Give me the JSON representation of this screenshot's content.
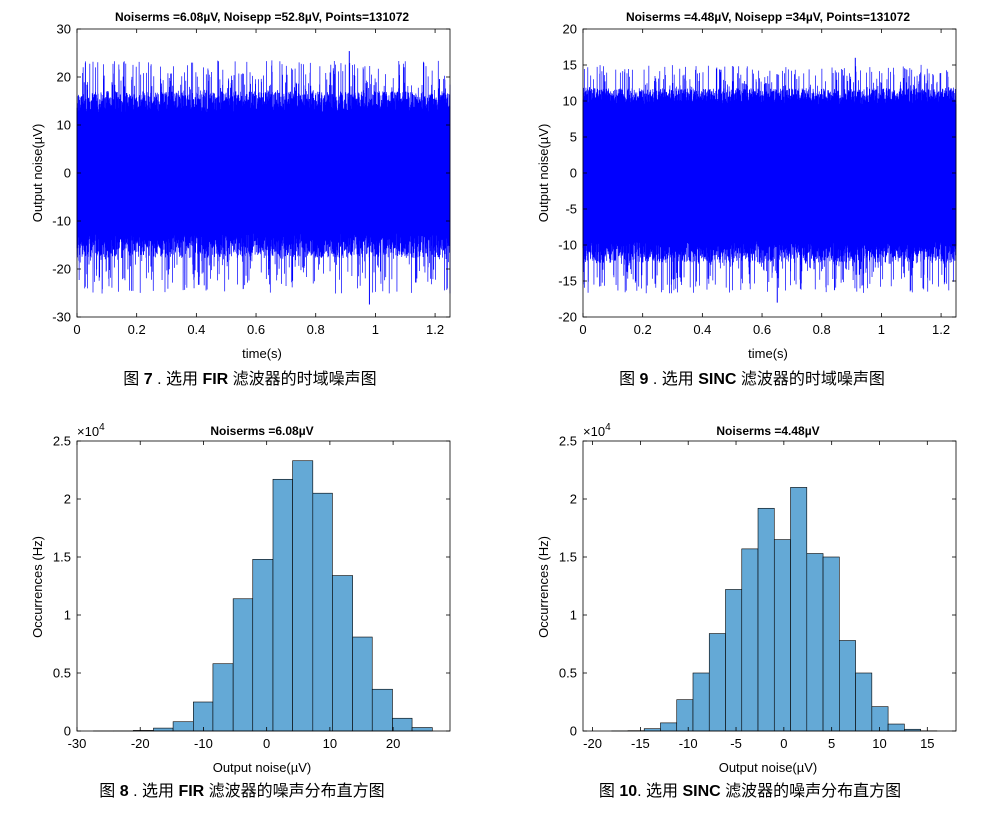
{
  "colors": {
    "signal": "#0000ff",
    "bar": "#64a9d6",
    "axis": "#000000"
  },
  "chart_data": [
    {
      "id": "fig7",
      "type": "line",
      "title": "Noiserms =6.08µV, Noisepp =52.8µV, Points=131072",
      "xlabel": "time(s)",
      "ylabel": "Output noise(µV)",
      "xlim": [
        0,
        1.25
      ],
      "ylim": [
        -30,
        30
      ],
      "xticks": [
        0,
        0.2,
        0.4,
        0.6,
        0.8,
        1,
        1.2
      ],
      "xtick_labels": [
        "0",
        "0.2",
        "0.4",
        "0.6",
        "0.8",
        "1",
        "1.2"
      ],
      "yticks": [
        -30,
        -20,
        -10,
        0,
        10,
        20,
        30
      ],
      "ytick_labels": [
        "-30",
        "-20",
        "-10",
        "0",
        "10",
        "20",
        "30"
      ],
      "noise": {
        "rms": 6.08,
        "peak_max": 25.4,
        "peak_min": -27.4,
        "band": 12.5,
        "points": 131072
      },
      "caption": {
        "prefix": "图 ",
        "bold1": "7",
        "mid1": " . 选用 ",
        "bold2": "FIR",
        "rest": " 滤波器的时域噪声图"
      }
    },
    {
      "id": "fig9",
      "type": "line",
      "title": "Noiserms =4.48µV, Noisepp =34µV, Points=131072",
      "xlabel": "time(s)",
      "ylabel": "Output noise(µV)",
      "xlim": [
        0,
        1.25
      ],
      "ylim": [
        -20,
        20
      ],
      "xticks": [
        0,
        0.2,
        0.4,
        0.6,
        0.8,
        1,
        1.2
      ],
      "xtick_labels": [
        "0",
        "0.2",
        "0.4",
        "0.6",
        "0.8",
        "1",
        "1.2"
      ],
      "yticks": [
        -20,
        -15,
        -10,
        -5,
        0,
        5,
        10,
        15,
        20
      ],
      "ytick_labels": [
        "-20",
        "-15",
        "-10",
        "-5",
        "0",
        "5",
        "10",
        "15",
        "20"
      ],
      "noise": {
        "rms": 4.48,
        "peak_max": 16,
        "peak_min": -18,
        "band": 9.5,
        "points": 131072
      },
      "caption": {
        "prefix": "图 ",
        "bold1": "9",
        "mid1": " . 选用 ",
        "bold2": "SINC",
        "rest": " 滤波器的时域噪声图"
      }
    },
    {
      "id": "fig8",
      "type": "bar",
      "title": "Noiserms =6.08µV",
      "xlabel": "Output noise(µV)",
      "ylabel": "Occurrences (Hz)",
      "exponent_label": "×10",
      "exponent_power": "4",
      "xlim": [
        -30,
        29
      ],
      "ylim": [
        0,
        25000
      ],
      "xticks": [
        -30,
        -20,
        -10,
        0,
        10,
        20
      ],
      "xtick_labels": [
        "-30",
        "-20",
        "-10",
        "0",
        "10",
        "20"
      ],
      "yticks": [
        0,
        5000,
        10000,
        15000,
        20000,
        25000
      ],
      "ytick_labels": [
        "0",
        "0.5",
        "1",
        "1.5",
        "2",
        "2.5"
      ],
      "bin_edges": [
        -27.4,
        -24.2,
        -21.1,
        -17.9,
        -14.8,
        -11.6,
        -8.5,
        -5.3,
        -2.2,
        1.0,
        4.1,
        7.3,
        10.4,
        13.6,
        16.7,
        19.9,
        23.0,
        26.2
      ],
      "values": [
        5,
        10,
        50,
        250,
        800,
        2500,
        5800,
        11400,
        14800,
        21700,
        23300,
        20500,
        13400,
        8100,
        3600,
        1100,
        300
      ],
      "caption": {
        "prefix": "图 ",
        "bold1": "8",
        "mid1": " . 选用 ",
        "bold2": "FIR",
        "rest": " 滤波器的噪声分布直方图"
      }
    },
    {
      "id": "fig10",
      "type": "bar",
      "title": "Noiserms =4.48µV",
      "xlabel": "Output noise(µV)",
      "ylabel": "Occurrences (Hz)",
      "exponent_label": "×10",
      "exponent_power": "4",
      "xlim": [
        -21,
        18
      ],
      "ylim": [
        0,
        25000
      ],
      "xticks": [
        -20,
        -15,
        -10,
        -5,
        0,
        5,
        10,
        15
      ],
      "xtick_labels": [
        "-20",
        "-15",
        "-10",
        "-5",
        "0",
        "5",
        "10",
        "15"
      ],
      "yticks": [
        0,
        5000,
        10000,
        15000,
        20000,
        25000
      ],
      "ytick_labels": [
        "0",
        "0.5",
        "1",
        "1.5",
        "2",
        "2.5"
      ],
      "bin_edges": [
        -18.0,
        -16.3,
        -14.6,
        -12.9,
        -11.2,
        -9.5,
        -7.8,
        -6.1,
        -4.4,
        -2.7,
        -1.0,
        0.7,
        2.4,
        4.1,
        5.8,
        7.5,
        9.2,
        10.9,
        12.6,
        14.3,
        16.0
      ],
      "values": [
        10,
        30,
        200,
        700,
        2700,
        5000,
        8400,
        12200,
        15700,
        19200,
        16500,
        21000,
        15300,
        15000,
        7800,
        5000,
        2100,
        600,
        150,
        20
      ],
      "caption": {
        "prefix": "图 ",
        "bold1": "10",
        "mid1": ". 选用 ",
        "bold2": "SINC",
        "rest": " 滤波器的噪声分布直方图"
      }
    }
  ]
}
